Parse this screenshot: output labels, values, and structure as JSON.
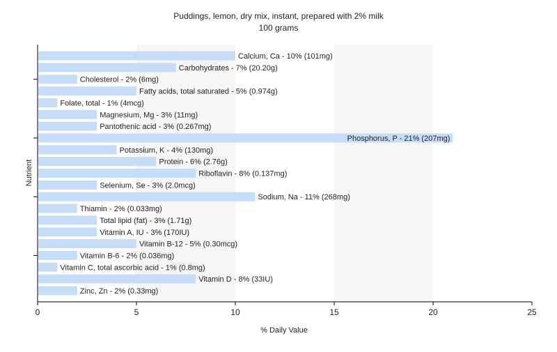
{
  "chart_data": {
    "type": "bar",
    "orientation": "horizontal",
    "title": "Puddings, lemon, dry mix, instant, prepared with 2% milk",
    "subtitle": "100 grams",
    "xlabel": "% Daily Value",
    "ylabel": "Nutrient",
    "xlim": [
      0,
      25
    ],
    "xticks": [
      0,
      5,
      10,
      15,
      20,
      25
    ],
    "grid": "vertical-bands",
    "bar_color": "#c6dcf7",
    "categories": [
      "Calcium, Ca - 10% (101mg)",
      "Carbohydrates - 7% (20.20g)",
      "Cholesterol - 2% (6mg)",
      "Fatty acids, total saturated - 5% (0.974g)",
      "Folate, total - 1% (4mcg)",
      "Magnesium, Mg - 3% (11mg)",
      "Pantothenic acid - 3% (0.267mg)",
      "Phosphorus, P - 21% (207mg)",
      "Potassium, K - 4% (130mg)",
      "Protein - 6% (2.76g)",
      "Riboflavin - 8% (0.137mg)",
      "Selenium, Se - 3% (2.0mcg)",
      "Sodium, Na - 11% (268mg)",
      "Thiamin - 2% (0.033mg)",
      "Total lipid (fat) - 3% (1.71g)",
      "Vitamin A, IU - 3% (170IU)",
      "Vitamin B-12 - 5% (0.30mcg)",
      "Vitamin B-6 - 2% (0.036mg)",
      "Vitamin C, total ascorbic acid - 1% (0.8mg)",
      "Vitamin D - 8% (33IU)",
      "Zinc, Zn - 2% (0.33mg)"
    ],
    "values": [
      10,
      7,
      2,
      5,
      1,
      3,
      3,
      21,
      4,
      6,
      8,
      3,
      11,
      2,
      3,
      3,
      5,
      2,
      1,
      8,
      2
    ]
  }
}
